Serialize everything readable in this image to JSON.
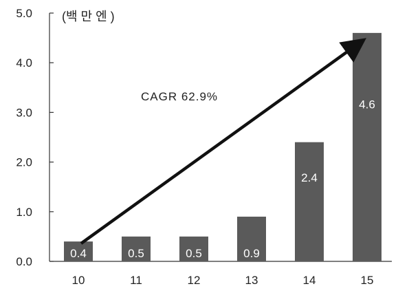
{
  "chart_data": {
    "type": "bar",
    "unit_label": "(백 만 엔 )",
    "categories": [
      "10",
      "11",
      "12",
      "13",
      "14",
      "15"
    ],
    "values": [
      0.4,
      0.5,
      0.5,
      0.9,
      2.4,
      4.6
    ],
    "data_labels": [
      "0.4",
      "0.5",
      "0.5",
      "0.9",
      "2.4",
      "4.6"
    ],
    "y_ticks": [
      "0.0",
      "1.0",
      "2.0",
      "3.0",
      "4.0",
      "5.0"
    ],
    "ylim": [
      0,
      5
    ],
    "annotation": "CAGR 62.9%",
    "arrow": {
      "from_category": "10",
      "from_value": 0.5,
      "to_category": "15",
      "to_value": 4.5
    },
    "grid": false,
    "colors": {
      "bar": "#5a5a5a",
      "label_inside": "#ffffff",
      "axis": "#333333",
      "text": "#222222",
      "arrow": "#111111"
    }
  }
}
